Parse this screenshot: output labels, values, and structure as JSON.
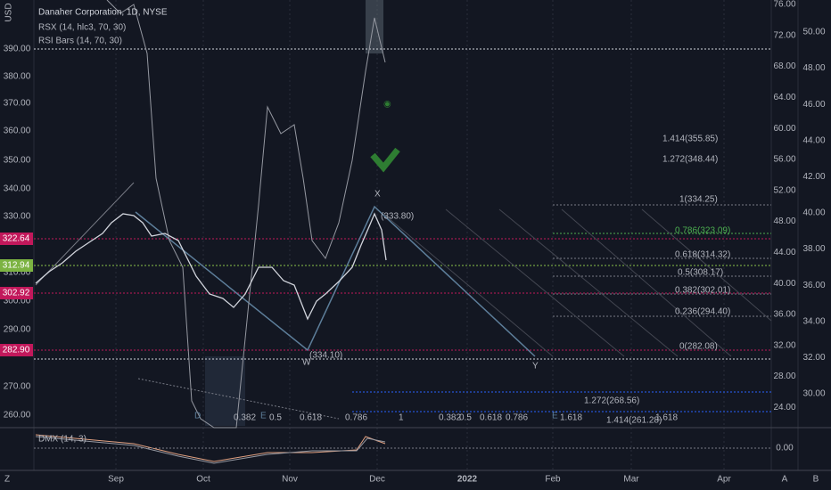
{
  "header": {
    "currency": "USD",
    "title": "Danaher Corporation, 1D, NYSE",
    "indicators": [
      "RSX (14, hlc3, 70, 30)",
      "RSI Bars (14, 70, 30)"
    ]
  },
  "price_axis": [
    "390.00",
    "380.00",
    "370.00",
    "360.00",
    "350.00",
    "340.00",
    "330.00",
    "310.00",
    "300.00",
    "290.00",
    "270.00",
    "260.00"
  ],
  "price_tags": [
    "322.64",
    "312.94",
    "302.92",
    "282.90"
  ],
  "right_axis_1": [
    "76.00",
    "72.00",
    "68.00",
    "64.00",
    "60.00",
    "56.00",
    "52.00",
    "48.00",
    "44.00",
    "40.00",
    "36.00",
    "32.00",
    "28.00",
    "24.00"
  ],
  "right_axis_2": [
    "50.00",
    "48.00",
    "46.00",
    "44.00",
    "42.00",
    "40.00",
    "38.00",
    "36.00",
    "34.00",
    "32.00",
    "30.00"
  ],
  "time_axis": [
    "Sep",
    "Oct",
    "Nov",
    "Dec",
    "2022",
    "Feb",
    "Mar",
    "Apr"
  ],
  "fib_right": [
    "1.414(355.85)",
    "1.272(348.44)",
    "1(334.25)",
    "0.786(323.09)",
    "0.618(314.32)",
    "0.5(308.17)",
    "0.382(302.01)",
    "0.236(294.40)",
    "0(282.08)"
  ],
  "fib_bottom": [
    "0.382",
    "0.5",
    "0.618",
    "0.786",
    "1",
    "0.382",
    "0.5",
    "0.618",
    "0.786",
    "1.618",
    "1.272(268.56)",
    "1.414(261.28)",
    "1.618"
  ],
  "wave_labels": [
    "X",
    "W",
    "Y",
    "(333.80)",
    "(334.10)",
    "D",
    "E",
    "E"
  ],
  "dmx": {
    "title": "DMX (14, 3)",
    "zero": "0.00"
  },
  "corner": [
    "Z",
    "A",
    "B"
  ]
}
